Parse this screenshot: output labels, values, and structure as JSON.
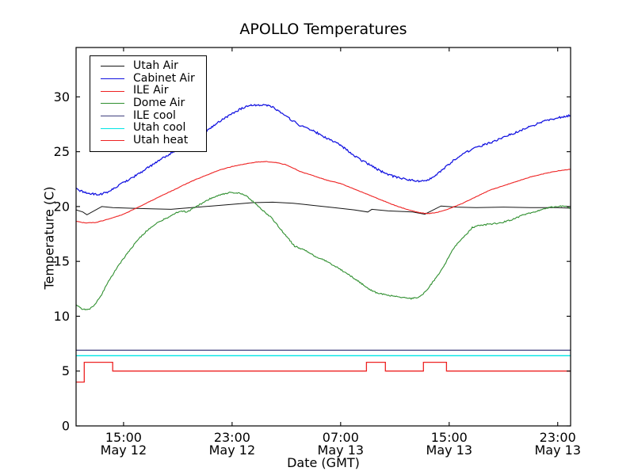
{
  "chart_data": {
    "type": "line",
    "title": "APOLLO Temperatures",
    "xlabel": "Date (GMT)",
    "ylabel": "Temperature (C)",
    "x_unit": "hours since May 12 00:00 GMT",
    "xlim": [
      11.5,
      47.95
    ],
    "ylim": [
      0,
      34.5
    ],
    "grid": false,
    "legend_position": "upper left",
    "xticks": [
      {
        "value": 15,
        "time": "15:00",
        "date": "May 12"
      },
      {
        "value": 23,
        "time": "23:00",
        "date": "May 12"
      },
      {
        "value": 31,
        "time": "07:00",
        "date": "May 13"
      },
      {
        "value": 39,
        "time": "15:00",
        "date": "May 13"
      },
      {
        "value": 47,
        "time": "23:00",
        "date": "May 13"
      }
    ],
    "yticks": [
      0,
      5,
      10,
      15,
      20,
      25,
      30
    ],
    "series": [
      {
        "name": "Utah Air",
        "color": "#151515",
        "width": 1.0,
        "noise": 0,
        "points": [
          [
            11.5,
            19.7
          ],
          [
            12.0,
            19.5
          ],
          [
            12.3,
            19.25
          ],
          [
            13.4,
            20.0
          ],
          [
            14.2,
            19.9
          ],
          [
            15.5,
            19.85
          ],
          [
            17,
            19.8
          ],
          [
            18.5,
            19.75
          ],
          [
            20,
            19.9
          ],
          [
            21.5,
            20.05
          ],
          [
            23,
            20.2
          ],
          [
            24.5,
            20.35
          ],
          [
            26,
            20.4
          ],
          [
            27.5,
            20.3
          ],
          [
            29,
            20.1
          ],
          [
            30.5,
            19.9
          ],
          [
            32,
            19.7
          ],
          [
            33.0,
            19.5
          ],
          [
            33.3,
            19.75
          ],
          [
            34.5,
            19.6
          ],
          [
            35.5,
            19.55
          ],
          [
            36.3,
            19.5
          ],
          [
            37.2,
            19.3
          ],
          [
            38.4,
            20.05
          ],
          [
            39.5,
            19.95
          ],
          [
            41,
            19.9
          ],
          [
            43,
            19.95
          ],
          [
            45,
            19.9
          ],
          [
            47,
            19.9
          ],
          [
            47.95,
            19.85
          ]
        ]
      },
      {
        "name": "Cabinet Air",
        "color": "#1010e0",
        "width": 1.25,
        "noise": 0.09,
        "points": [
          [
            11.5,
            21.6
          ],
          [
            12.0,
            21.35
          ],
          [
            12.6,
            21.15
          ],
          [
            13.2,
            21.1
          ],
          [
            13.8,
            21.3
          ],
          [
            14.5,
            21.8
          ],
          [
            15,
            22.2
          ],
          [
            16,
            22.9
          ],
          [
            17,
            23.7
          ],
          [
            18,
            24.5
          ],
          [
            19,
            25.2
          ],
          [
            20,
            25.9
          ],
          [
            21,
            26.8
          ],
          [
            22,
            27.7
          ],
          [
            23,
            28.5
          ],
          [
            23.8,
            29.0
          ],
          [
            24.4,
            29.2
          ],
          [
            25.3,
            29.3
          ],
          [
            26,
            29.1
          ],
          [
            27,
            28.2
          ],
          [
            28,
            27.4
          ],
          [
            29,
            26.9
          ],
          [
            30,
            26.2
          ],
          [
            31,
            25.6
          ],
          [
            32,
            24.6
          ],
          [
            33,
            23.9
          ],
          [
            34,
            23.2
          ],
          [
            35,
            22.7
          ],
          [
            36,
            22.45
          ],
          [
            36.7,
            22.3
          ],
          [
            37.4,
            22.45
          ],
          [
            38,
            22.8
          ],
          [
            39,
            23.9
          ],
          [
            40,
            24.8
          ],
          [
            41,
            25.4
          ],
          [
            42,
            25.8
          ],
          [
            43,
            26.3
          ],
          [
            44,
            26.8
          ],
          [
            45,
            27.3
          ],
          [
            46,
            27.8
          ],
          [
            47,
            28.1
          ],
          [
            47.95,
            28.3
          ]
        ]
      },
      {
        "name": "ILE Air",
        "color": "#ee2222",
        "width": 1.1,
        "noise": 0.02,
        "points": [
          [
            11.5,
            18.65
          ],
          [
            12.2,
            18.5
          ],
          [
            13,
            18.55
          ],
          [
            14,
            18.9
          ],
          [
            15,
            19.3
          ],
          [
            16,
            19.9
          ],
          [
            17,
            20.5
          ],
          [
            18,
            21.1
          ],
          [
            19,
            21.7
          ],
          [
            20,
            22.3
          ],
          [
            21,
            22.8
          ],
          [
            22,
            23.3
          ],
          [
            23,
            23.65
          ],
          [
            24,
            23.9
          ],
          [
            24.8,
            24.05
          ],
          [
            25.5,
            24.1
          ],
          [
            26.3,
            24.0
          ],
          [
            27,
            23.8
          ],
          [
            28,
            23.2
          ],
          [
            29,
            22.8
          ],
          [
            30,
            22.4
          ],
          [
            31,
            22.1
          ],
          [
            32,
            21.6
          ],
          [
            33,
            21.1
          ],
          [
            34,
            20.6
          ],
          [
            35,
            20.1
          ],
          [
            36,
            19.7
          ],
          [
            36.8,
            19.45
          ],
          [
            37.5,
            19.35
          ],
          [
            38.2,
            19.5
          ],
          [
            39,
            19.8
          ],
          [
            40,
            20.3
          ],
          [
            41,
            20.9
          ],
          [
            42,
            21.5
          ],
          [
            43,
            21.9
          ],
          [
            44,
            22.3
          ],
          [
            45,
            22.7
          ],
          [
            46,
            23.0
          ],
          [
            47,
            23.25
          ],
          [
            47.95,
            23.4
          ]
        ]
      },
      {
        "name": "Dome Air",
        "color": "#2f8f2f",
        "width": 1.1,
        "noise": 0.06,
        "points": [
          [
            11.5,
            11.1
          ],
          [
            11.9,
            10.7
          ],
          [
            12.3,
            10.55
          ],
          [
            12.8,
            10.9
          ],
          [
            13.3,
            11.8
          ],
          [
            13.9,
            13.2
          ],
          [
            14.5,
            14.4
          ],
          [
            15.2,
            15.6
          ],
          [
            16,
            16.9
          ],
          [
            16.8,
            17.9
          ],
          [
            17.6,
            18.6
          ],
          [
            18.4,
            19.1
          ],
          [
            19.2,
            19.6
          ],
          [
            19.7,
            19.5
          ],
          [
            20.2,
            19.9
          ],
          [
            20.8,
            20.3
          ],
          [
            21.5,
            20.8
          ],
          [
            22.2,
            21.1
          ],
          [
            22.9,
            21.3
          ],
          [
            23.6,
            21.2
          ],
          [
            24.1,
            20.9
          ],
          [
            24.6,
            20.4
          ],
          [
            25.2,
            19.7
          ],
          [
            25.9,
            19.0
          ],
          [
            26.4,
            18.2
          ],
          [
            27,
            17.3
          ],
          [
            27.6,
            16.4
          ],
          [
            28.4,
            16.0
          ],
          [
            29.2,
            15.4
          ],
          [
            30,
            15.0
          ],
          [
            30.8,
            14.4
          ],
          [
            31.6,
            13.8
          ],
          [
            32.4,
            13.1
          ],
          [
            33.2,
            12.4
          ],
          [
            33.8,
            12.05
          ],
          [
            34.6,
            11.9
          ],
          [
            35.4,
            11.75
          ],
          [
            36.2,
            11.6
          ],
          [
            36.8,
            11.75
          ],
          [
            37.3,
            12.3
          ],
          [
            37.9,
            13.3
          ],
          [
            38.6,
            14.5
          ],
          [
            39.2,
            16.0
          ],
          [
            39.8,
            16.9
          ],
          [
            40.3,
            17.5
          ],
          [
            40.7,
            18.1
          ],
          [
            41.2,
            18.25
          ],
          [
            42,
            18.4
          ],
          [
            42.8,
            18.5
          ],
          [
            43.6,
            18.8
          ],
          [
            44.4,
            19.2
          ],
          [
            45.2,
            19.5
          ],
          [
            46,
            19.8
          ],
          [
            46.8,
            20.0
          ],
          [
            47.4,
            20.05
          ],
          [
            47.95,
            19.9
          ]
        ]
      },
      {
        "name": "ILE cool",
        "color": "#3f3f7d",
        "width": 1.3,
        "noise": 0,
        "points": [
          [
            11.5,
            6.9
          ],
          [
            47.95,
            6.9
          ]
        ]
      },
      {
        "name": "Utah cool",
        "color": "#00e5e5",
        "width": 1.3,
        "noise": 0,
        "points": [
          [
            11.5,
            6.4
          ],
          [
            47.95,
            6.4
          ]
        ]
      },
      {
        "name": "Utah heat",
        "color": "#ee2222",
        "width": 1.3,
        "noise": 0,
        "points": [
          [
            11.5,
            4.0
          ],
          [
            12.1,
            4.0
          ],
          [
            12.1,
            5.8
          ],
          [
            14.2,
            5.8
          ],
          [
            14.2,
            5.0
          ],
          [
            32.9,
            5.0
          ],
          [
            32.9,
            5.8
          ],
          [
            34.3,
            5.8
          ],
          [
            34.3,
            5.0
          ],
          [
            37.1,
            5.0
          ],
          [
            37.1,
            5.8
          ],
          [
            38.8,
            5.8
          ],
          [
            38.8,
            5.0
          ],
          [
            47.95,
            5.0
          ]
        ]
      }
    ]
  }
}
